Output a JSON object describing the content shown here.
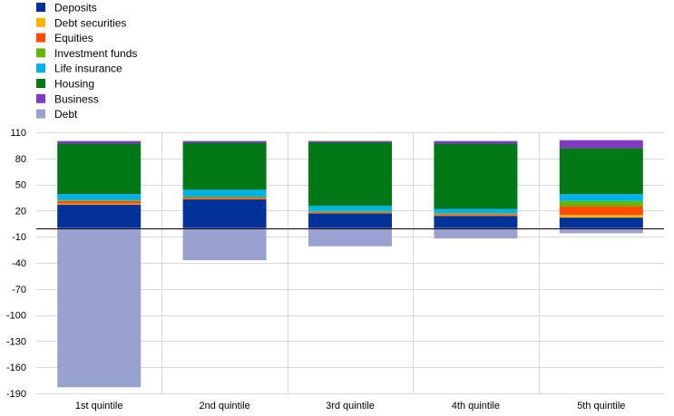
{
  "chart_data": {
    "type": "bar",
    "stacked": true,
    "categories": [
      "1st quintile",
      "2nd quintile",
      "3rd quintile",
      "4th quintile",
      "5th quintile"
    ],
    "series": [
      {
        "name": "Deposits",
        "color": "#003299",
        "values": [
          27,
          33,
          17,
          14,
          12
        ]
      },
      {
        "name": "Debt securities",
        "color": "#FFB400",
        "values": [
          1,
          0.5,
          0.5,
          0.5,
          3
        ]
      },
      {
        "name": "Equities",
        "color": "#FF4B00",
        "values": [
          3,
          1.5,
          1,
          1.5,
          10
        ]
      },
      {
        "name": "Investment funds",
        "color": "#65B800",
        "values": [
          1,
          1,
          1,
          1,
          6
        ]
      },
      {
        "name": "Life insurance",
        "color": "#00B1EA",
        "values": [
          7,
          8,
          6,
          5,
          8
        ]
      },
      {
        "name": "Housing",
        "color": "#007816",
        "values": [
          58,
          54,
          73,
          75,
          53
        ]
      },
      {
        "name": "Business",
        "color": "#8139C6",
        "values": [
          3,
          2,
          1.5,
          3,
          9
        ]
      },
      {
        "name": "Debt",
        "color": "#98A1D0",
        "values": [
          -183,
          -37,
          -21,
          -12,
          -6
        ]
      }
    ],
    "ylim": [
      -190,
      110
    ],
    "yticks": [
      "110",
      "80",
      "50",
      "20",
      "-10",
      "-40",
      "-70",
      "-100",
      "-130",
      "-160",
      "-190"
    ],
    "ytick_values": [
      110,
      80,
      50,
      20,
      -10,
      -40,
      -70,
      -100,
      -130,
      -160,
      -190
    ],
    "grid": true,
    "legend": "top-left",
    "title": "",
    "xlabel": "",
    "ylabel": ""
  }
}
